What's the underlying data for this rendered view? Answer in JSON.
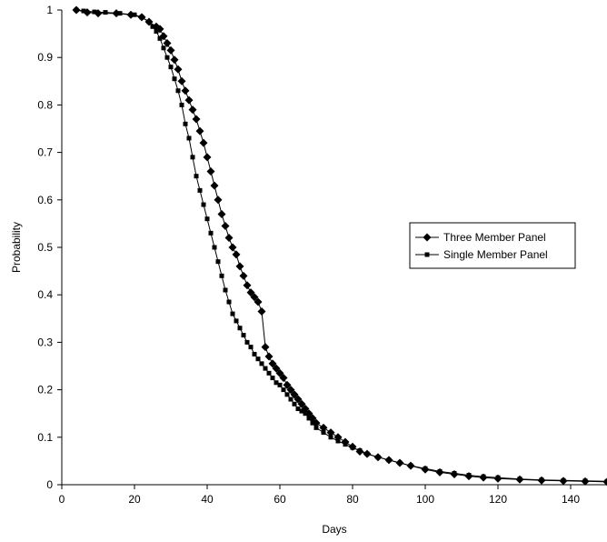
{
  "chart_data": {
    "type": "line",
    "title": "",
    "xlabel": "Days",
    "ylabel": "Probability",
    "xlim": [
      0,
      150
    ],
    "ylim": [
      0,
      1
    ],
    "x_ticks": [
      0,
      20,
      40,
      60,
      80,
      100,
      120,
      140
    ],
    "y_ticks": [
      0,
      0.1,
      0.2,
      0.3,
      0.4,
      0.5,
      0.6,
      0.7,
      0.8,
      0.9,
      1
    ],
    "grid": false,
    "legend_position": "right",
    "series": [
      {
        "name": "Three Member Panel",
        "marker": "diamond",
        "color": "#000000",
        "x": [
          4,
          7,
          10,
          15,
          19,
          22,
          24,
          26,
          27,
          28,
          29,
          30,
          31,
          32,
          33,
          34,
          35,
          36,
          37,
          38,
          39,
          40,
          41,
          42,
          43,
          44,
          45,
          46,
          47,
          48,
          49,
          50,
          51,
          52,
          53,
          54,
          55,
          56,
          57,
          58,
          59,
          60,
          61,
          62,
          63,
          64,
          65,
          66,
          67,
          68,
          69,
          70,
          72,
          74,
          76,
          78,
          80,
          82,
          84,
          87,
          90,
          93,
          96,
          100,
          104,
          108,
          112,
          116,
          120,
          126,
          132,
          138,
          144,
          150
        ],
        "y": [
          1.0,
          0.995,
          0.993,
          0.993,
          0.99,
          0.985,
          0.975,
          0.965,
          0.96,
          0.945,
          0.93,
          0.915,
          0.895,
          0.875,
          0.85,
          0.83,
          0.81,
          0.79,
          0.77,
          0.745,
          0.72,
          0.69,
          0.66,
          0.63,
          0.6,
          0.57,
          0.545,
          0.52,
          0.5,
          0.485,
          0.46,
          0.44,
          0.42,
          0.405,
          0.395,
          0.385,
          0.365,
          0.29,
          0.27,
          0.255,
          0.245,
          0.235,
          0.225,
          0.21,
          0.2,
          0.19,
          0.18,
          0.17,
          0.16,
          0.15,
          0.14,
          0.13,
          0.12,
          0.11,
          0.1,
          0.09,
          0.08,
          0.07,
          0.065,
          0.058,
          0.052,
          0.046,
          0.04,
          0.032,
          0.026,
          0.022,
          0.018,
          0.015,
          0.013,
          0.011,
          0.009,
          0.008,
          0.007,
          0.006
        ]
      },
      {
        "name": "Single Member Panel",
        "marker": "square",
        "color": "#000000",
        "x": [
          4,
          6,
          9,
          12,
          16,
          20,
          22,
          24,
          25,
          26,
          27,
          28,
          29,
          30,
          31,
          32,
          33,
          34,
          35,
          36,
          37,
          38,
          39,
          40,
          41,
          42,
          43,
          44,
          45,
          46,
          47,
          48,
          49,
          50,
          51,
          52,
          53,
          54,
          55,
          56,
          57,
          58,
          59,
          60,
          61,
          62,
          63,
          64,
          65,
          66,
          67,
          68,
          69,
          70,
          72,
          74,
          76,
          78,
          80,
          82,
          84,
          87,
          90,
          93,
          96,
          100,
          104,
          108,
          112,
          116,
          120,
          126,
          132,
          138,
          144,
          150
        ],
        "y": [
          1.0,
          0.998,
          0.996,
          0.995,
          0.993,
          0.99,
          0.985,
          0.975,
          0.965,
          0.955,
          0.94,
          0.92,
          0.9,
          0.88,
          0.855,
          0.83,
          0.8,
          0.76,
          0.73,
          0.69,
          0.65,
          0.62,
          0.59,
          0.56,
          0.53,
          0.5,
          0.47,
          0.44,
          0.41,
          0.385,
          0.36,
          0.345,
          0.33,
          0.315,
          0.3,
          0.29,
          0.275,
          0.265,
          0.255,
          0.245,
          0.235,
          0.225,
          0.215,
          0.21,
          0.2,
          0.19,
          0.18,
          0.17,
          0.16,
          0.155,
          0.15,
          0.14,
          0.13,
          0.12,
          0.11,
          0.1,
          0.092,
          0.085,
          0.078,
          0.072,
          0.065,
          0.058,
          0.052,
          0.046,
          0.04,
          0.034,
          0.028,
          0.024,
          0.02,
          0.017,
          0.015,
          0.012,
          0.01,
          0.009,
          0.008,
          0.007
        ]
      }
    ]
  }
}
